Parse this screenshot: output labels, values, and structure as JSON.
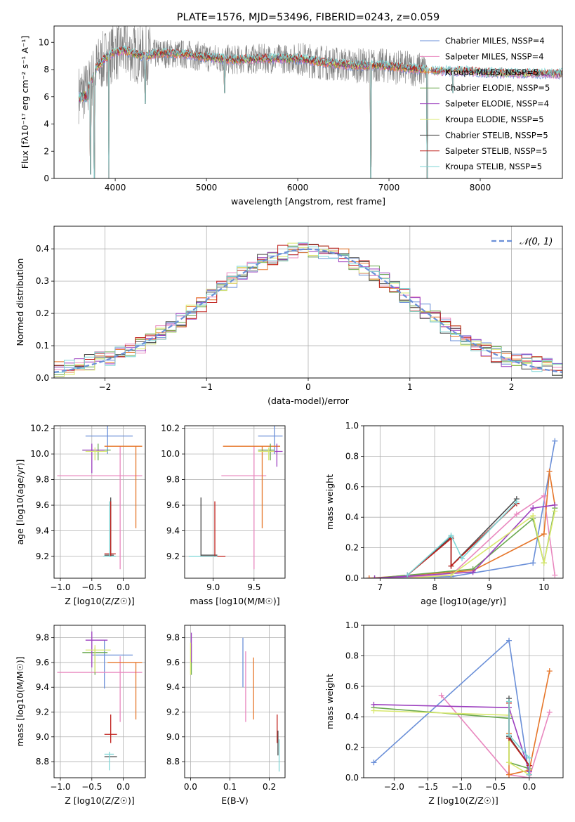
{
  "colors": [
    "#6a8fd8",
    "#e988bf",
    "#e6762a",
    "#6aa84f",
    "#9c3fbf",
    "#d9e86e",
    "#4a4a4a",
    "#c0201c",
    "#7dd6d6"
  ],
  "chart_data": [
    {
      "id": "spectrum",
      "type": "line",
      "title": "PLATE=1576, MJD=53496, FIBERID=0243, z=0.059",
      "xlabel": "wavelength [Angstrom, rest frame]",
      "ylabel": "Flux [fλ10⁻¹⁷ erg cm⁻² s⁻¹ A⁻¹]",
      "xlim": [
        3330,
        8900
      ],
      "ylim": [
        0,
        11.2
      ],
      "xticks": [
        4000,
        5000,
        6000,
        7000,
        8000
      ],
      "yticks": [
        0,
        2,
        4,
        6,
        8,
        10
      ],
      "legend_position": "top-right",
      "legend": [
        {
          "label": "Chabrier MILES, NSSP=4"
        },
        {
          "label": "Salpeter MILES, NSSP=4"
        },
        {
          "label": "Kroupa MILES, NSSP=5"
        },
        {
          "label": "Chabrier ELODIE, NSSP=5"
        },
        {
          "label": "Salpeter ELODIE, NSSP=4"
        },
        {
          "label": "Kroupa ELODIE, NSSP=5"
        },
        {
          "label": "Chabrier STELIB, NSSP=5"
        },
        {
          "label": "Salpeter STELIB, NSSP=5"
        },
        {
          "label": "Kroupa STELIB, NSSP=5"
        }
      ],
      "data_range": [
        3600,
        8900
      ],
      "continuum": [
        [
          3600,
          6.2
        ],
        [
          3700,
          6.5
        ],
        [
          3800,
          8.2
        ],
        [
          3900,
          8.9
        ],
        [
          4000,
          9.3
        ],
        [
          4100,
          9.4
        ],
        [
          4300,
          9.0
        ],
        [
          4500,
          9.2
        ],
        [
          4800,
          9.1
        ],
        [
          5000,
          8.9
        ],
        [
          5300,
          8.7
        ],
        [
          5600,
          8.8
        ],
        [
          6000,
          8.8
        ],
        [
          6300,
          8.5
        ],
        [
          6600,
          8.3
        ],
        [
          6900,
          8.3
        ],
        [
          7200,
          8.1
        ],
        [
          7500,
          7.9
        ],
        [
          7800,
          7.9
        ],
        [
          8000,
          7.8
        ],
        [
          8400,
          7.7
        ],
        [
          8900,
          7.7
        ]
      ],
      "dips": [
        [
          3730,
          0.3
        ],
        [
          3770,
          0.0
        ],
        [
          3930,
          0.0
        ],
        [
          4330,
          5.5
        ],
        [
          5200,
          6.3
        ],
        [
          6800,
          0.0
        ],
        [
          7420,
          0.0
        ],
        [
          7700,
          6.3
        ]
      ]
    },
    {
      "id": "residuals",
      "type": "step",
      "xlabel": "(data-model)/error",
      "ylabel": "Normed distribution",
      "xlim": [
        -2.5,
        2.5
      ],
      "ylim": [
        0,
        0.47
      ],
      "xticks": [
        -2,
        -1,
        0,
        1,
        2
      ],
      "yticks": [
        0.0,
        0.1,
        0.2,
        0.3,
        0.4
      ],
      "legend_position": "top-right",
      "legend_label": "𝒩(0, 1)",
      "bin_width": 0.1
    },
    {
      "id": "age-vs-Z",
      "type": "errorbar",
      "xlabel": "Z [log10(Z/Z☉)]",
      "ylabel": "age [log10(age/yr)]",
      "xlim": [
        -1.1,
        0.35
      ],
      "ylim": [
        9.03,
        10.22
      ],
      "xticks": [
        -1.0,
        -0.5,
        0.0
      ],
      "yticks": [
        9.2,
        9.4,
        9.6,
        9.8,
        10.0,
        10.2
      ],
      "points": [
        {
          "c": 0,
          "x": -0.25,
          "y": 10.14,
          "xl": -0.6,
          "xh": 0.15,
          "yl": 10.0,
          "yh": 10.22
        },
        {
          "c": 1,
          "x": -0.05,
          "y": 9.83,
          "xl": -1.05,
          "xh": 0.3,
          "yl": 9.1,
          "yh": 10.06
        },
        {
          "c": 2,
          "x": 0.2,
          "y": 10.06,
          "xl": -0.3,
          "xh": 0.3,
          "yl": 9.42,
          "yh": 10.06
        },
        {
          "c": 3,
          "x": -0.4,
          "y": 10.03,
          "xl": -0.65,
          "xh": -0.2,
          "yl": 9.95,
          "yh": 10.08
        },
        {
          "c": 4,
          "x": -0.5,
          "y": 10.03,
          "xl": -0.65,
          "xh": -0.3,
          "yl": 9.85,
          "yh": 10.08
        },
        {
          "c": 5,
          "x": -0.45,
          "y": 10.02,
          "xl": -0.6,
          "xh": -0.25,
          "yl": 9.95,
          "yh": 10.05
        },
        {
          "c": 6,
          "x": -0.2,
          "y": 9.21,
          "xl": -0.3,
          "xh": -0.15,
          "yl": 9.2,
          "yh": 9.66
        },
        {
          "c": 7,
          "x": -0.2,
          "y": 9.22,
          "xl": -0.3,
          "xh": -0.12,
          "yl": 9.2,
          "yh": 9.63
        },
        {
          "c": 8,
          "x": -0.22,
          "y": 9.2,
          "xl": -0.32,
          "xh": -0.12,
          "yl": 9.2,
          "yh": 9.63
        }
      ]
    },
    {
      "id": "age-vs-mass",
      "type": "errorbar",
      "xlabel": "mass [log10(M/M☉)]",
      "ylabel": "",
      "xlim": [
        8.65,
        9.88
      ],
      "ylim": [
        9.03,
        10.22
      ],
      "xticks": [
        9.0,
        9.5
      ],
      "yticks": [
        9.2,
        9.4,
        9.6,
        9.8,
        10.0,
        10.2
      ],
      "points": [
        {
          "c": 0,
          "x": 9.75,
          "y": 10.14,
          "xl": 9.55,
          "xh": 9.85,
          "yl": 10.0,
          "yh": 10.22
        },
        {
          "c": 1,
          "x": 9.5,
          "y": 9.83,
          "xl": 9.1,
          "xh": 9.65,
          "yl": 9.1,
          "yh": 10.06
        },
        {
          "c": 2,
          "x": 9.6,
          "y": 10.06,
          "xl": 9.12,
          "xh": 9.82,
          "yl": 9.42,
          "yh": 10.06
        },
        {
          "c": 3,
          "x": 9.7,
          "y": 10.03,
          "xl": 9.55,
          "xh": 9.75,
          "yl": 9.95,
          "yh": 10.08
        },
        {
          "c": 4,
          "x": 9.78,
          "y": 10.02,
          "xl": 9.6,
          "xh": 9.85,
          "yl": 9.9,
          "yh": 10.08
        },
        {
          "c": 5,
          "x": 9.68,
          "y": 10.02,
          "xl": 9.55,
          "xh": 9.75,
          "yl": 9.95,
          "yh": 10.05
        },
        {
          "c": 6,
          "x": 8.85,
          "y": 9.21,
          "xl": 8.85,
          "xh": 9.05,
          "yl": 9.2,
          "yh": 9.66
        },
        {
          "c": 7,
          "x": 9.02,
          "y": 9.2,
          "xl": 8.86,
          "xh": 9.15,
          "yl": 9.2,
          "yh": 9.63
        },
        {
          "c": 8,
          "x": 8.88,
          "y": 9.2,
          "xl": 8.7,
          "xh": 9.05,
          "yl": 9.2,
          "yh": 9.2
        }
      ]
    },
    {
      "id": "massweight-vs-age",
      "type": "line",
      "xlabel": "age [log10(age/yr)]",
      "ylabel": "mass weight",
      "xlim": [
        6.7,
        10.35
      ],
      "ylim": [
        0,
        1.0
      ],
      "xticks": [
        7,
        8,
        9,
        10
      ],
      "yticks": [
        0.0,
        0.2,
        0.4,
        0.6,
        0.8,
        1.0
      ],
      "series": [
        {
          "c": 0,
          "x": [
            6.8,
            8.3,
            9.8,
            10.2
          ],
          "y": [
            0.0,
            0.01,
            0.1,
            0.9
          ]
        },
        {
          "c": 1,
          "x": [
            6.8,
            8.3,
            9.5,
            10.0,
            10.2
          ],
          "y": [
            0.0,
            0.02,
            0.42,
            0.54,
            0.02
          ]
        },
        {
          "c": 2,
          "x": [
            6.8,
            8.7,
            10.0,
            10.1,
            10.2
          ],
          "y": [
            0.0,
            0.05,
            0.29,
            0.7,
            0.48
          ]
        },
        {
          "c": 3,
          "x": [
            6.9,
            8.7,
            9.8,
            10.0,
            10.2
          ],
          "y": [
            0.0,
            0.06,
            0.39,
            0.1,
            0.46
          ]
        },
        {
          "c": 4,
          "x": [
            6.9,
            8.7,
            9.8,
            10.2
          ],
          "y": [
            0.0,
            0.04,
            0.46,
            0.48
          ]
        },
        {
          "c": 5,
          "x": [
            7.5,
            8.3,
            9.8,
            10.0,
            10.2
          ],
          "y": [
            0.0,
            0.02,
            0.41,
            0.1,
            0.44
          ]
        },
        {
          "c": 6,
          "x": [
            7.5,
            8.3,
            8.3,
            9.5
          ],
          "y": [
            0.02,
            0.27,
            0.08,
            0.52
          ]
        },
        {
          "c": 7,
          "x": [
            7.5,
            8.3,
            8.3,
            9.5
          ],
          "y": [
            0.02,
            0.26,
            0.08,
            0.49
          ]
        },
        {
          "c": 8,
          "x": [
            7.5,
            8.3,
            8.5,
            9.5
          ],
          "y": [
            0.02,
            0.28,
            0.13,
            0.5
          ]
        }
      ]
    },
    {
      "id": "mass-vs-Z",
      "type": "errorbar",
      "xlabel": "Z [log10(Z/Z☉)]",
      "ylabel": "mass [log10(M/M☉)]",
      "xlim": [
        -1.1,
        0.35
      ],
      "ylim": [
        8.67,
        9.9
      ],
      "xticks": [
        -1.0,
        -0.5,
        0.0
      ],
      "yticks": [
        8.8,
        9.0,
        9.2,
        9.4,
        9.6,
        9.8
      ],
      "points": [
        {
          "c": 0,
          "x": -0.3,
          "y": 9.66,
          "xl": -0.5,
          "xh": 0.15,
          "yl": 9.39,
          "yh": 9.78
        },
        {
          "c": 1,
          "x": -0.05,
          "y": 9.52,
          "xl": -1.05,
          "xh": 0.3,
          "yl": 9.12,
          "yh": 9.65
        },
        {
          "c": 2,
          "x": 0.2,
          "y": 9.6,
          "xl": -0.25,
          "xh": 0.3,
          "yl": 9.14,
          "yh": 9.6
        },
        {
          "c": 3,
          "x": -0.45,
          "y": 9.68,
          "xl": -0.65,
          "xh": -0.25,
          "yl": 9.5,
          "yh": 9.72
        },
        {
          "c": 4,
          "x": -0.5,
          "y": 9.78,
          "xl": -0.6,
          "xh": -0.25,
          "yl": 9.56,
          "yh": 9.85
        },
        {
          "c": 5,
          "x": -0.45,
          "y": 9.7,
          "xl": -0.6,
          "xh": -0.2,
          "yl": 9.52,
          "yh": 9.74
        },
        {
          "c": 6,
          "x": -0.2,
          "y": 8.84,
          "xl": -0.3,
          "xh": -0.1,
          "yl": 8.84,
          "yh": 8.84
        },
        {
          "c": 7,
          "x": -0.2,
          "y": 9.02,
          "xl": -0.3,
          "xh": -0.1,
          "yl": 8.95,
          "yh": 9.18
        },
        {
          "c": 8,
          "x": -0.22,
          "y": 8.86,
          "xl": -0.3,
          "xh": -0.15,
          "yl": 8.73,
          "yh": 8.88
        }
      ]
    },
    {
      "id": "mass-vs-EBV",
      "type": "errorbar",
      "xlabel": "E(B-V)",
      "ylabel": "",
      "xlim": [
        -0.015,
        0.24
      ],
      "ylim": [
        8.67,
        9.9
      ],
      "xticks": [
        0.0,
        0.1,
        0.2
      ],
      "yticks": [
        8.8,
        9.0,
        9.2,
        9.4,
        9.6,
        9.8
      ],
      "points": [
        {
          "c": 0,
          "x": 0.133,
          "y": 9.66,
          "xl": 0.133,
          "xh": 0.133,
          "yl": 9.4,
          "yh": 9.8
        },
        {
          "c": 1,
          "x": 0.14,
          "y": 9.52,
          "xl": 0.14,
          "xh": 0.14,
          "yl": 9.12,
          "yh": 9.69
        },
        {
          "c": 2,
          "x": 0.16,
          "y": 9.6,
          "xl": 0.16,
          "xh": 0.16,
          "yl": 9.14,
          "yh": 9.64
        },
        {
          "c": 3,
          "x": 0.002,
          "y": 9.68,
          "xl": 0.002,
          "xh": 0.002,
          "yl": 9.5,
          "yh": 9.75
        },
        {
          "c": 4,
          "x": 0.002,
          "y": 9.78,
          "xl": 0.002,
          "xh": 0.002,
          "yl": 9.6,
          "yh": 9.84
        },
        {
          "c": 5,
          "x": 0.0,
          "y": 9.7,
          "xl": 0.0,
          "xh": 0.0,
          "yl": 9.5,
          "yh": 9.76
        },
        {
          "c": 6,
          "x": 0.222,
          "y": 8.95,
          "xl": 0.222,
          "xh": 0.222,
          "yl": 8.85,
          "yh": 9.05
        },
        {
          "c": 7,
          "x": 0.22,
          "y": 9.05,
          "xl": 0.22,
          "xh": 0.22,
          "yl": 8.95,
          "yh": 9.18
        },
        {
          "c": 8,
          "x": 0.225,
          "y": 8.85,
          "xl": 0.225,
          "xh": 0.225,
          "yl": 8.72,
          "yh": 8.98
        }
      ]
    },
    {
      "id": "massweight-vs-Z",
      "type": "line",
      "xlabel": "Z [log10(Z/Z☉)]",
      "ylabel": "mass weight",
      "xlim": [
        -2.45,
        0.5
      ],
      "ylim": [
        0,
        1.0
      ],
      "xticks": [
        -2.0,
        -1.5,
        -1.0,
        -0.5,
        0.0
      ],
      "yticks": [
        0.0,
        0.2,
        0.4,
        0.6,
        0.8,
        1.0
      ],
      "series": [
        {
          "c": 0,
          "x": [
            -2.3,
            -0.3,
            0.0,
            0.0
          ],
          "y": [
            0.1,
            0.9,
            0.0,
            0.05
          ]
        },
        {
          "c": 1,
          "x": [
            -1.3,
            -0.3,
            0.0,
            0.3
          ],
          "y": [
            0.54,
            0.02,
            0.0,
            0.43
          ]
        },
        {
          "c": 2,
          "x": [
            -0.3,
            -0.3,
            0.0,
            0.3
          ],
          "y": [
            0.29,
            0.02,
            0.05,
            0.7
          ]
        },
        {
          "c": 3,
          "x": [
            -2.3,
            -0.3,
            -0.3,
            0.0
          ],
          "y": [
            0.46,
            0.39,
            0.1,
            0.06
          ]
        },
        {
          "c": 4,
          "x": [
            -2.3,
            -0.3,
            0.0
          ],
          "y": [
            0.48,
            0.46,
            0.04
          ]
        },
        {
          "c": 5,
          "x": [
            -2.3,
            -0.3,
            -0.3,
            0.0
          ],
          "y": [
            0.44,
            0.41,
            0.1,
            0.02
          ]
        },
        {
          "c": 6,
          "x": [
            -0.3,
            -0.3,
            0.0,
            0.0
          ],
          "y": [
            0.52,
            0.27,
            0.08,
            0.02
          ]
        },
        {
          "c": 7,
          "x": [
            -0.3,
            -0.3,
            0.0,
            0.0
          ],
          "y": [
            0.49,
            0.26,
            0.08,
            0.02
          ]
        },
        {
          "c": 8,
          "x": [
            -0.3,
            -0.3,
            0.0,
            0.0
          ],
          "y": [
            0.5,
            0.28,
            0.13,
            0.02
          ]
        }
      ]
    }
  ]
}
